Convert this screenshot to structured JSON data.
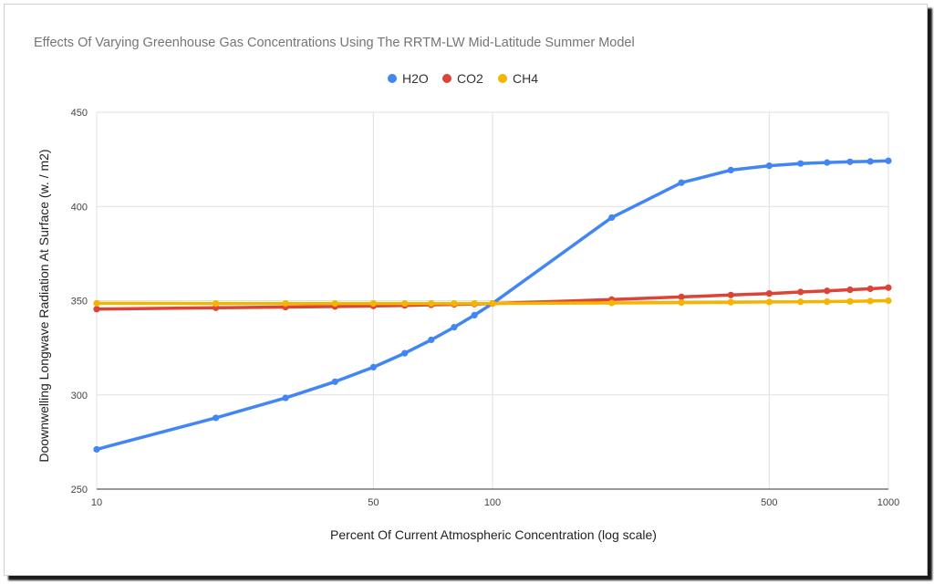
{
  "chart_data": {
    "type": "line",
    "title": "Effects Of Varying Greenhouse Gas Concentrations Using The RRTM-LW Mid-Latitude Summer Model",
    "xlabel": "Percent Of Current Atmospheric Concentration (log scale)",
    "ylabel": "Doownwelling Longwave Radiation At Surface (w. / m2)",
    "x_scale": "log",
    "xlim": [
      10,
      1000
    ],
    "ylim": [
      250,
      450
    ],
    "x_ticks": [
      10,
      50,
      100,
      500,
      1000
    ],
    "y_ticks": [
      250,
      300,
      350,
      400,
      450
    ],
    "x_tick_labels": [
      "10",
      "50",
      "100",
      "500",
      "1000"
    ],
    "y_tick_labels": [
      "250",
      "300",
      "350",
      "400",
      "450"
    ],
    "grid": true,
    "legend_position": "top-center",
    "x": [
      10,
      20,
      30,
      40,
      50,
      60,
      70,
      80,
      90,
      100,
      200,
      300,
      400,
      500,
      600,
      700,
      800,
      900,
      1000
    ],
    "series": [
      {
        "name": "H2O",
        "color": "#4285f4",
        "values": [
          271.1,
          287.8,
          298.4,
          307.0,
          314.7,
          322.1,
          329.2,
          335.9,
          342.3,
          348.5,
          394.1,
          412.6,
          419.3,
          421.6,
          422.8,
          423.3,
          423.7,
          423.9,
          424.2
        ]
      },
      {
        "name": "CO2",
        "color": "#db4437",
        "values": [
          345.5,
          346.2,
          346.6,
          346.9,
          347.2,
          347.5,
          347.8,
          348.0,
          348.2,
          348.5,
          350.6,
          352.0,
          353.0,
          353.8,
          354.6,
          355.2,
          355.8,
          356.3,
          356.9
        ]
      },
      {
        "name": "CH4",
        "color": "#f4b400",
        "values": [
          348.6,
          348.5,
          348.5,
          348.5,
          348.5,
          348.5,
          348.5,
          348.5,
          348.5,
          348.5,
          348.8,
          349.0,
          349.2,
          349.3,
          349.4,
          349.5,
          349.6,
          349.8,
          350.0
        ]
      }
    ]
  }
}
